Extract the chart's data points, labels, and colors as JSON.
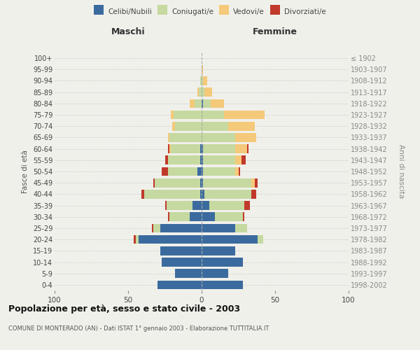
{
  "age_groups": [
    "0-4",
    "5-9",
    "10-14",
    "15-19",
    "20-24",
    "25-29",
    "30-34",
    "35-39",
    "40-44",
    "45-49",
    "50-54",
    "55-59",
    "60-64",
    "65-69",
    "70-74",
    "75-79",
    "80-84",
    "85-89",
    "90-94",
    "95-99",
    "100+"
  ],
  "birth_years": [
    "1998-2002",
    "1993-1997",
    "1988-1992",
    "1983-1987",
    "1978-1982",
    "1973-1977",
    "1968-1972",
    "1963-1967",
    "1958-1962",
    "1953-1957",
    "1948-1952",
    "1943-1947",
    "1938-1942",
    "1933-1937",
    "1928-1932",
    "1923-1927",
    "1918-1922",
    "1913-1917",
    "1908-1912",
    "1903-1907",
    "≤ 1902"
  ],
  "maschi": {
    "celibi": [
      30,
      18,
      27,
      28,
      43,
      28,
      8,
      6,
      1,
      1,
      3,
      1,
      1,
      0,
      0,
      0,
      0,
      0,
      0,
      0,
      0
    ],
    "coniugati": [
      0,
      0,
      0,
      0,
      2,
      5,
      14,
      18,
      38,
      31,
      20,
      22,
      20,
      22,
      18,
      19,
      5,
      2,
      1,
      0,
      0
    ],
    "vedovi": [
      0,
      0,
      0,
      0,
      0,
      0,
      0,
      0,
      0,
      0,
      0,
      0,
      1,
      1,
      2,
      2,
      3,
      1,
      0,
      0,
      0
    ],
    "divorziati": [
      0,
      0,
      0,
      0,
      1,
      1,
      1,
      1,
      2,
      1,
      4,
      2,
      1,
      0,
      0,
      0,
      0,
      0,
      0,
      0,
      0
    ]
  },
  "femmine": {
    "nubili": [
      28,
      18,
      28,
      23,
      38,
      23,
      9,
      5,
      2,
      1,
      1,
      1,
      1,
      0,
      0,
      0,
      1,
      0,
      0,
      0,
      0
    ],
    "coniugate": [
      0,
      0,
      0,
      0,
      4,
      8,
      19,
      24,
      32,
      33,
      22,
      22,
      22,
      23,
      18,
      15,
      5,
      2,
      1,
      0,
      0
    ],
    "vedove": [
      0,
      0,
      0,
      0,
      0,
      0,
      0,
      0,
      0,
      2,
      2,
      4,
      8,
      14,
      18,
      28,
      9,
      5,
      3,
      1,
      0
    ],
    "divorziate": [
      0,
      0,
      0,
      0,
      0,
      0,
      1,
      4,
      3,
      2,
      1,
      3,
      1,
      0,
      0,
      0,
      0,
      0,
      0,
      0,
      0
    ]
  },
  "colors": {
    "celibi": "#3b6b9e",
    "coniugati": "#c5d9a0",
    "vedovi": "#f5c97a",
    "divorziati": "#c0392b"
  },
  "xlim": 100,
  "title": "Popolazione per età, sesso e stato civile - 2003",
  "subtitle": "COMUNE DI MONTERADO (AN) - Dati ISTAT 1° gennaio 2003 - Elaborazione TUTTITALIA.IT",
  "ylabel_left": "Fasce di età",
  "ylabel_right": "Anni di nascita",
  "xlabel_left": "Maschi",
  "xlabel_right": "Femmine",
  "background_color": "#f0f0eb"
}
